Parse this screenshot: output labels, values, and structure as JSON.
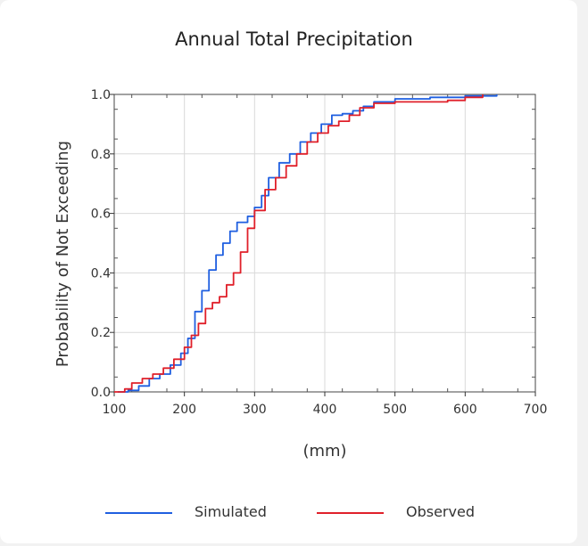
{
  "chart_data": {
    "type": "line",
    "title": "Annual Total Precipitation",
    "xlabel": "(mm)",
    "ylabel": "Probability of Not Exceeding",
    "xlim": [
      100,
      700
    ],
    "ylim": [
      0.0,
      1.0
    ],
    "xticks": [
      "100",
      "200",
      "300",
      "400",
      "500",
      "600",
      "700"
    ],
    "yticks": [
      "0.0",
      "0.2",
      "0.4",
      "0.6",
      "0.8",
      "1.0"
    ],
    "grid": true,
    "legend_position": "bottom",
    "series": [
      {
        "name": "Simulated",
        "color": "#1f5fe0",
        "points": [
          [
            105,
            0.0
          ],
          [
            120,
            0.005
          ],
          [
            135,
            0.02
          ],
          [
            150,
            0.045
          ],
          [
            165,
            0.06
          ],
          [
            180,
            0.09
          ],
          [
            195,
            0.13
          ],
          [
            205,
            0.18
          ],
          [
            215,
            0.27
          ],
          [
            225,
            0.34
          ],
          [
            235,
            0.41
          ],
          [
            245,
            0.46
          ],
          [
            255,
            0.5
          ],
          [
            265,
            0.54
          ],
          [
            275,
            0.57
          ],
          [
            290,
            0.59
          ],
          [
            300,
            0.62
          ],
          [
            310,
            0.66
          ],
          [
            320,
            0.72
          ],
          [
            335,
            0.77
          ],
          [
            350,
            0.8
          ],
          [
            365,
            0.84
          ],
          [
            380,
            0.87
          ],
          [
            395,
            0.9
          ],
          [
            410,
            0.93
          ],
          [
            425,
            0.935
          ],
          [
            440,
            0.945
          ],
          [
            455,
            0.96
          ],
          [
            470,
            0.975
          ],
          [
            500,
            0.985
          ],
          [
            550,
            0.99
          ],
          [
            600,
            0.995
          ],
          [
            645,
            1.0
          ]
        ]
      },
      {
        "name": "Observed",
        "color": "#e0202a",
        "points": [
          [
            100,
            0.0
          ],
          [
            115,
            0.01
          ],
          [
            125,
            0.03
          ],
          [
            140,
            0.045
          ],
          [
            155,
            0.06
          ],
          [
            170,
            0.08
          ],
          [
            185,
            0.11
          ],
          [
            200,
            0.15
          ],
          [
            210,
            0.19
          ],
          [
            220,
            0.23
          ],
          [
            230,
            0.28
          ],
          [
            240,
            0.3
          ],
          [
            250,
            0.32
          ],
          [
            260,
            0.36
          ],
          [
            270,
            0.4
          ],
          [
            280,
            0.47
          ],
          [
            290,
            0.55
          ],
          [
            300,
            0.61
          ],
          [
            315,
            0.68
          ],
          [
            330,
            0.72
          ],
          [
            345,
            0.76
          ],
          [
            360,
            0.8
          ],
          [
            375,
            0.84
          ],
          [
            390,
            0.87
          ],
          [
            405,
            0.895
          ],
          [
            420,
            0.91
          ],
          [
            435,
            0.93
          ],
          [
            450,
            0.955
          ],
          [
            470,
            0.97
          ],
          [
            500,
            0.975
          ],
          [
            540,
            0.975
          ],
          [
            575,
            0.98
          ],
          [
            600,
            0.99
          ],
          [
            625,
            1.0
          ]
        ]
      }
    ]
  }
}
